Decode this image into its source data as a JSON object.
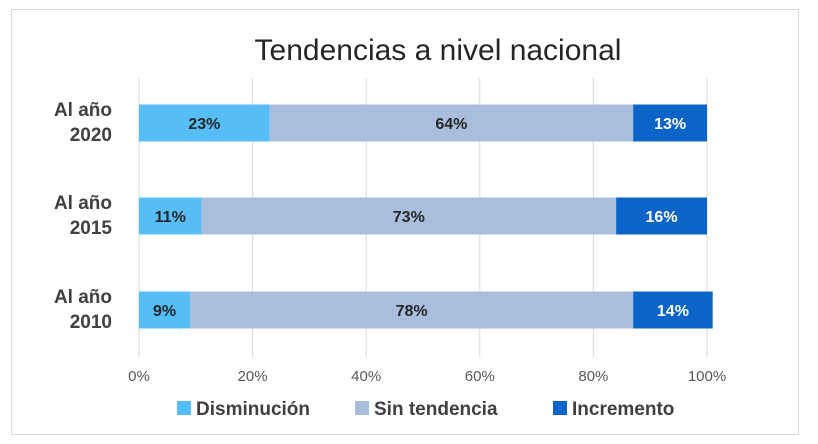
{
  "chart_data": {
    "type": "bar",
    "orientation": "horizontal",
    "stacked": true,
    "title": "Tendencias a nivel nacional",
    "categories": [
      [
        "Al año",
        "2020"
      ],
      [
        "Al año",
        "2015"
      ],
      [
        "Al año",
        "2010"
      ]
    ],
    "series": [
      {
        "name": "Disminución",
        "color": "#56bdf7",
        "values": [
          23,
          11,
          9
        ],
        "labels": [
          "23%",
          "11%",
          "9%"
        ]
      },
      {
        "name": "Sin tendencia",
        "color": "#a9bddd",
        "values": [
          64,
          73,
          78
        ],
        "labels": [
          "64%",
          "73%",
          "78%"
        ]
      },
      {
        "name": "Incremento",
        "color": "#0c63c8",
        "values": [
          13,
          16,
          14
        ],
        "labels": [
          "13%",
          "16%",
          "14%"
        ]
      }
    ],
    "xlim": [
      0,
      100
    ],
    "xticks": [
      "0%",
      "20%",
      "40%",
      "60%",
      "80%",
      "100%"
    ],
    "grid": true,
    "legend_position": "bottom"
  }
}
